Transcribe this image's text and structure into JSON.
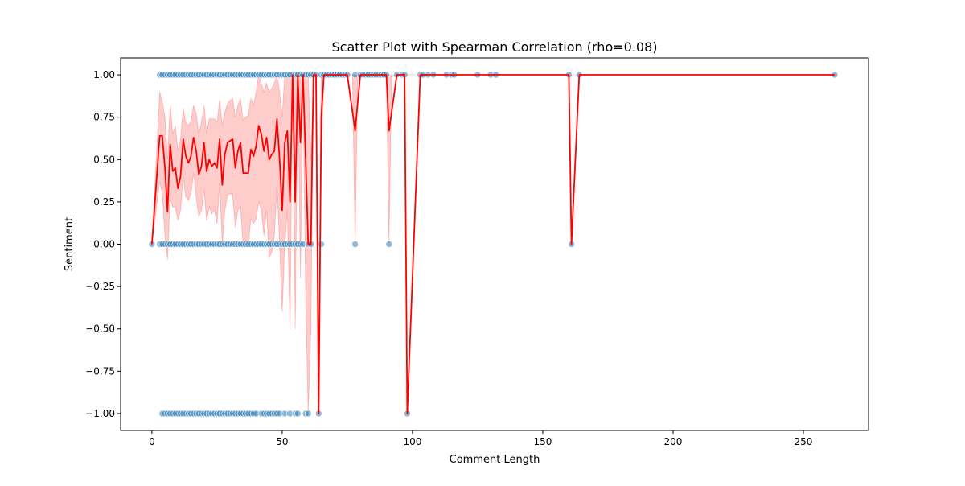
{
  "chart_data": {
    "type": "scatter",
    "title": "Scatter Plot with Spearman Correlation (rho=0.08)",
    "xlabel": "Comment Length",
    "ylabel": "Sentiment",
    "xlim": [
      -12,
      275
    ],
    "ylim": [
      -1.1,
      1.1
    ],
    "xticks": [
      0,
      50,
      100,
      150,
      200,
      250
    ],
    "yticks": [
      -1.0,
      -0.75,
      -0.5,
      -0.25,
      0.0,
      0.25,
      0.5,
      0.75,
      1.0
    ],
    "xtick_labels": [
      "0",
      "50",
      "100",
      "150",
      "200",
      "250"
    ],
    "ytick_labels": [
      "−1.00",
      "−0.75",
      "−0.50",
      "−0.25",
      "0.00",
      "0.25",
      "0.50",
      "0.75",
      "1.00"
    ],
    "grid": false,
    "scatter_color": "#1f77b4",
    "line_color": "#ff0000",
    "band_color": "#ff0000",
    "points": [
      [
        0,
        0
      ],
      [
        3,
        1
      ],
      [
        4,
        1
      ],
      [
        5,
        1
      ],
      [
        6,
        1
      ],
      [
        7,
        1
      ],
      [
        8,
        1
      ],
      [
        9,
        1
      ],
      [
        10,
        1
      ],
      [
        11,
        1
      ],
      [
        12,
        1
      ],
      [
        13,
        1
      ],
      [
        14,
        1
      ],
      [
        15,
        1
      ],
      [
        16,
        1
      ],
      [
        17,
        1
      ],
      [
        18,
        1
      ],
      [
        19,
        1
      ],
      [
        20,
        1
      ],
      [
        21,
        1
      ],
      [
        22,
        1
      ],
      [
        23,
        1
      ],
      [
        24,
        1
      ],
      [
        25,
        1
      ],
      [
        26,
        1
      ],
      [
        27,
        1
      ],
      [
        28,
        1
      ],
      [
        29,
        1
      ],
      [
        30,
        1
      ],
      [
        31,
        1
      ],
      [
        32,
        1
      ],
      [
        33,
        1
      ],
      [
        34,
        1
      ],
      [
        35,
        1
      ],
      [
        36,
        1
      ],
      [
        37,
        1
      ],
      [
        38,
        1
      ],
      [
        39,
        1
      ],
      [
        40,
        1
      ],
      [
        41,
        1
      ],
      [
        42,
        1
      ],
      [
        43,
        1
      ],
      [
        44,
        1
      ],
      [
        45,
        1
      ],
      [
        46,
        1
      ],
      [
        47,
        1
      ],
      [
        48,
        1
      ],
      [
        49,
        1
      ],
      [
        50,
        1
      ],
      [
        51,
        1
      ],
      [
        52,
        1
      ],
      [
        53,
        1
      ],
      [
        54,
        1
      ],
      [
        55,
        1
      ],
      [
        56,
        1
      ],
      [
        57,
        1
      ],
      [
        58,
        1
      ],
      [
        59,
        1
      ],
      [
        60,
        1
      ],
      [
        61,
        1
      ],
      [
        62,
        1
      ],
      [
        63,
        1
      ],
      [
        65,
        1
      ],
      [
        66,
        1
      ],
      [
        67,
        1
      ],
      [
        68,
        1
      ],
      [
        69,
        1
      ],
      [
        70,
        1
      ],
      [
        71,
        1
      ],
      [
        72,
        1
      ],
      [
        73,
        1
      ],
      [
        74,
        1
      ],
      [
        75,
        1
      ],
      [
        78,
        1
      ],
      [
        80,
        1
      ],
      [
        81,
        1
      ],
      [
        82,
        1
      ],
      [
        83,
        1
      ],
      [
        84,
        1
      ],
      [
        85,
        1
      ],
      [
        86,
        1
      ],
      [
        87,
        1
      ],
      [
        88,
        1
      ],
      [
        89,
        1
      ],
      [
        90,
        1
      ],
      [
        94,
        1
      ],
      [
        96,
        1
      ],
      [
        97,
        1
      ],
      [
        103,
        1
      ],
      [
        104,
        1
      ],
      [
        106,
        1
      ],
      [
        108,
        1
      ],
      [
        113,
        1
      ],
      [
        115,
        1
      ],
      [
        116,
        1
      ],
      [
        125,
        1
      ],
      [
        130,
        1
      ],
      [
        132,
        1
      ],
      [
        160,
        1
      ],
      [
        164,
        1
      ],
      [
        262,
        1
      ],
      [
        3,
        0
      ],
      [
        4,
        0
      ],
      [
        5,
        0
      ],
      [
        6,
        0
      ],
      [
        7,
        0
      ],
      [
        8,
        0
      ],
      [
        9,
        0
      ],
      [
        10,
        0
      ],
      [
        11,
        0
      ],
      [
        12,
        0
      ],
      [
        13,
        0
      ],
      [
        14,
        0
      ],
      [
        15,
        0
      ],
      [
        16,
        0
      ],
      [
        17,
        0
      ],
      [
        18,
        0
      ],
      [
        19,
        0
      ],
      [
        20,
        0
      ],
      [
        21,
        0
      ],
      [
        22,
        0
      ],
      [
        23,
        0
      ],
      [
        24,
        0
      ],
      [
        25,
        0
      ],
      [
        26,
        0
      ],
      [
        27,
        0
      ],
      [
        28,
        0
      ],
      [
        29,
        0
      ],
      [
        30,
        0
      ],
      [
        31,
        0
      ],
      [
        32,
        0
      ],
      [
        33,
        0
      ],
      [
        34,
        0
      ],
      [
        35,
        0
      ],
      [
        36,
        0
      ],
      [
        37,
        0
      ],
      [
        38,
        0
      ],
      [
        39,
        0
      ],
      [
        40,
        0
      ],
      [
        41,
        0
      ],
      [
        42,
        0
      ],
      [
        43,
        0
      ],
      [
        44,
        0
      ],
      [
        45,
        0
      ],
      [
        46,
        0
      ],
      [
        47,
        0
      ],
      [
        48,
        0
      ],
      [
        49,
        0
      ],
      [
        50,
        0
      ],
      [
        51,
        0
      ],
      [
        52,
        0
      ],
      [
        53,
        0
      ],
      [
        54,
        0
      ],
      [
        55,
        0
      ],
      [
        56,
        0
      ],
      [
        57,
        0
      ],
      [
        58,
        0
      ],
      [
        60,
        0
      ],
      [
        61,
        0
      ],
      [
        65,
        0
      ],
      [
        78,
        0
      ],
      [
        91,
        0
      ],
      [
        161,
        0
      ],
      [
        4,
        -1
      ],
      [
        5,
        -1
      ],
      [
        6,
        -1
      ],
      [
        7,
        -1
      ],
      [
        8,
        -1
      ],
      [
        9,
        -1
      ],
      [
        10,
        -1
      ],
      [
        11,
        -1
      ],
      [
        12,
        -1
      ],
      [
        13,
        -1
      ],
      [
        14,
        -1
      ],
      [
        15,
        -1
      ],
      [
        16,
        -1
      ],
      [
        17,
        -1
      ],
      [
        18,
        -1
      ],
      [
        19,
        -1
      ],
      [
        20,
        -1
      ],
      [
        21,
        -1
      ],
      [
        22,
        -1
      ],
      [
        23,
        -1
      ],
      [
        24,
        -1
      ],
      [
        25,
        -1
      ],
      [
        26,
        -1
      ],
      [
        27,
        -1
      ],
      [
        28,
        -1
      ],
      [
        29,
        -1
      ],
      [
        30,
        -1
      ],
      [
        31,
        -1
      ],
      [
        32,
        -1
      ],
      [
        33,
        -1
      ],
      [
        34,
        -1
      ],
      [
        35,
        -1
      ],
      [
        36,
        -1
      ],
      [
        37,
        -1
      ],
      [
        38,
        -1
      ],
      [
        39,
        -1
      ],
      [
        40,
        -1
      ],
      [
        42,
        -1
      ],
      [
        43,
        -1
      ],
      [
        44,
        -1
      ],
      [
        45,
        -1
      ],
      [
        46,
        -1
      ],
      [
        47,
        -1
      ],
      [
        48,
        -1
      ],
      [
        49,
        -1
      ],
      [
        51,
        -1
      ],
      [
        53,
        -1
      ],
      [
        55,
        -1
      ],
      [
        56,
        -1
      ],
      [
        59,
        -1
      ],
      [
        60,
        -1
      ],
      [
        64,
        -1
      ],
      [
        98,
        -1
      ]
    ],
    "mean_line": [
      [
        0,
        0
      ],
      [
        3,
        0.64
      ],
      [
        4,
        0.64
      ],
      [
        5,
        0.45
      ],
      [
        6,
        0.19
      ],
      [
        7,
        0.59
      ],
      [
        8,
        0.43
      ],
      [
        9,
        0.45
      ],
      [
        10,
        0.33
      ],
      [
        11,
        0.4
      ],
      [
        12,
        0.62
      ],
      [
        13,
        0.52
      ],
      [
        14,
        0.48
      ],
      [
        15,
        0.52
      ],
      [
        16,
        0.63
      ],
      [
        17,
        0.55
      ],
      [
        18,
        0.41
      ],
      [
        19,
        0.46
      ],
      [
        20,
        0.6
      ],
      [
        21,
        0.43
      ],
      [
        22,
        0.5
      ],
      [
        23,
        0.46
      ],
      [
        24,
        0.48
      ],
      [
        25,
        0.45
      ],
      [
        26,
        0.62
      ],
      [
        27,
        0.35
      ],
      [
        28,
        0.53
      ],
      [
        29,
        0.6
      ],
      [
        30,
        0.61
      ],
      [
        31,
        0.62
      ],
      [
        32,
        0.45
      ],
      [
        33,
        0.55
      ],
      [
        34,
        0.6
      ],
      [
        35,
        0.42
      ],
      [
        36,
        0.42
      ],
      [
        37,
        0.42
      ],
      [
        38,
        0.56
      ],
      [
        39,
        0.52
      ],
      [
        40,
        0.58
      ],
      [
        41,
        0.7
      ],
      [
        42,
        0.65
      ],
      [
        43,
        0.55
      ],
      [
        44,
        0.63
      ],
      [
        45,
        0.5
      ],
      [
        46,
        0.53
      ],
      [
        47,
        0.55
      ],
      [
        48,
        0.74
      ],
      [
        49,
        0.5
      ],
      [
        50,
        0.2
      ],
      [
        51,
        0.6
      ],
      [
        52,
        0.67
      ],
      [
        53,
        0.25
      ],
      [
        54,
        1.0
      ],
      [
        55,
        0.25
      ],
      [
        56,
        1.0
      ],
      [
        57,
        0.6
      ],
      [
        58,
        1.0
      ],
      [
        59,
        0.5
      ],
      [
        60,
        0.0
      ],
      [
        61,
        0.0
      ],
      [
        62,
        1.0
      ],
      [
        63,
        1.0
      ],
      [
        64,
        -1.0
      ],
      [
        65,
        0.75
      ],
      [
        66,
        1.0
      ],
      [
        75,
        1.0
      ],
      [
        78,
        0.67
      ],
      [
        80,
        1.0
      ],
      [
        89,
        1.0
      ],
      [
        90,
        1.0
      ],
      [
        91,
        0.67
      ],
      [
        94,
        1.0
      ],
      [
        97,
        1.0
      ],
      [
        98,
        -1.0
      ],
      [
        103,
        1.0
      ],
      [
        160,
        1.0
      ],
      [
        161,
        0.0
      ],
      [
        164,
        1.0
      ],
      [
        262,
        1.0
      ]
    ],
    "ci_band": [
      [
        0,
        0,
        0
      ],
      [
        3,
        0.37,
        0.9
      ],
      [
        4,
        0.3,
        0.84
      ],
      [
        5,
        0.05,
        0.75
      ],
      [
        6,
        -0.09,
        0.5
      ],
      [
        7,
        0.27,
        0.83
      ],
      [
        8,
        0.22,
        0.65
      ],
      [
        9,
        0.22,
        0.7
      ],
      [
        10,
        0.14,
        0.55
      ],
      [
        11,
        0.2,
        0.62
      ],
      [
        12,
        0.4,
        0.8
      ],
      [
        13,
        0.28,
        0.72
      ],
      [
        14,
        0.26,
        0.7
      ],
      [
        15,
        0.3,
        0.73
      ],
      [
        16,
        0.42,
        0.82
      ],
      [
        17,
        0.28,
        0.77
      ],
      [
        18,
        0.16,
        0.65
      ],
      [
        19,
        0.2,
        0.72
      ],
      [
        20,
        0.32,
        0.82
      ],
      [
        21,
        0.14,
        0.65
      ],
      [
        22,
        0.22,
        0.74
      ],
      [
        23,
        0.18,
        0.74
      ],
      [
        24,
        0.2,
        0.74
      ],
      [
        25,
        0.12,
        0.72
      ],
      [
        26,
        0.36,
        0.85
      ],
      [
        27,
        0.0,
        0.7
      ],
      [
        28,
        0.2,
        0.78
      ],
      [
        29,
        0.29,
        0.83
      ],
      [
        30,
        0.3,
        0.85
      ],
      [
        31,
        0.29,
        0.86
      ],
      [
        32,
        0.1,
        0.75
      ],
      [
        33,
        0.2,
        0.82
      ],
      [
        34,
        0.22,
        0.86
      ],
      [
        35,
        0.0,
        0.73
      ],
      [
        36,
        0.02,
        0.75
      ],
      [
        37,
        0.0,
        0.76
      ],
      [
        38,
        0.15,
        0.86
      ],
      [
        39,
        0.12,
        0.82
      ],
      [
        40,
        0.15,
        0.9
      ],
      [
        41,
        0.25,
        1.0
      ],
      [
        42,
        0.2,
        0.95
      ],
      [
        43,
        0.05,
        0.9
      ],
      [
        44,
        0.2,
        0.95
      ],
      [
        45,
        -0.08,
        0.9
      ],
      [
        46,
        -0.05,
        0.92
      ],
      [
        47,
        0.05,
        0.95
      ],
      [
        48,
        0.35,
        1.0
      ],
      [
        49,
        0.0,
        0.9
      ],
      [
        50,
        -0.4,
        0.75
      ],
      [
        51,
        0.0,
        1.0
      ],
      [
        52,
        0.2,
        1.0
      ],
      [
        53,
        -0.5,
        1.0
      ],
      [
        54,
        1.0,
        1.0
      ],
      [
        55,
        -0.5,
        1.0
      ],
      [
        56,
        1.0,
        1.0
      ],
      [
        57,
        -0.2,
        1.0
      ],
      [
        58,
        1.0,
        1.0
      ],
      [
        59,
        -0.3,
        1.0
      ],
      [
        60,
        -1.0,
        1.0
      ],
      [
        61,
        -0.5,
        0.5
      ],
      [
        62,
        1.0,
        1.0
      ],
      [
        63,
        1.0,
        1.0
      ],
      [
        64,
        -1.0,
        -1.0
      ],
      [
        65,
        0.5,
        1.0
      ],
      [
        66,
        1.0,
        1.0
      ],
      [
        75,
        1.0,
        1.0
      ],
      [
        77,
        1.0,
        1.0
      ],
      [
        78,
        0.0,
        1.0
      ],
      [
        79,
        1.0,
        1.0
      ],
      [
        89,
        1.0,
        1.0
      ],
      [
        90,
        1.0,
        1.0
      ],
      [
        91,
        0.0,
        1.0
      ],
      [
        92,
        1.0,
        1.0
      ],
      [
        262,
        1.0,
        1.0
      ]
    ]
  }
}
